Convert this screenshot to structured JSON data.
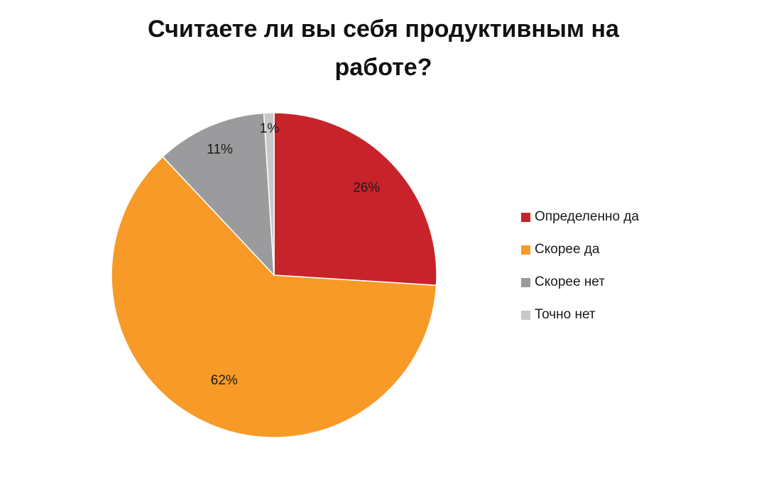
{
  "chart_data": {
    "type": "pie",
    "title_lines": [
      "Считаете ли вы себя продуктивным на",
      "работе?"
    ],
    "categories": [
      "Определенно да",
      "Скорее да",
      "Скорее нет",
      "Точно нет"
    ],
    "values": [
      26,
      62,
      11,
      1
    ],
    "data_labels": [
      "26%",
      "62%",
      "11%",
      "1%"
    ],
    "colors": [
      "#c8232b",
      "#f79a28",
      "#9b9b9d",
      "#c8c8ca"
    ],
    "legend_position": "right"
  }
}
